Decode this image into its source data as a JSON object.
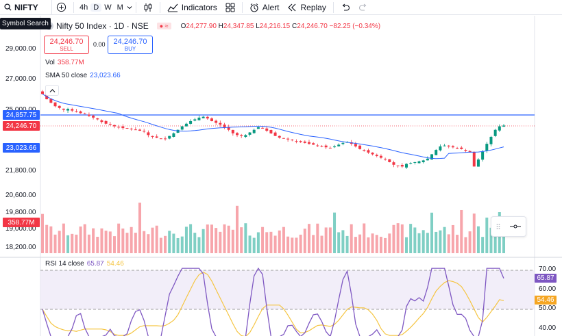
{
  "toolbar": {
    "symbol": "NIFTY",
    "intervals": [
      "4h",
      "D",
      "W",
      "M"
    ],
    "active_interval": "D",
    "indicators_label": "Indicators",
    "alert_label": "Alert",
    "replay_label": "Replay"
  },
  "tooltip": {
    "text": "Symbol Search"
  },
  "legend": {
    "title": "Nifty 50 Index · 1D · NSE",
    "o_label": "O",
    "o": "24,277.90",
    "h_label": "H",
    "h": "24,347.85",
    "l_label": "L",
    "l": "24,216.15",
    "c_label": "C",
    "c": "24,246.70",
    "change": "−82.25 (−0.34%)"
  },
  "trade": {
    "sell_price": "24,246.70",
    "sell_label": "SELL",
    "spread": "0.00",
    "buy_price": "24,246.70",
    "buy_label": "BUY"
  },
  "volume": {
    "label": "Vol",
    "value": "358.77M"
  },
  "sma": {
    "label": "SMA 50 close",
    "value": "23,023.66"
  },
  "rsi": {
    "label": "RSI 14 close",
    "value1": "65.87",
    "value2": "54.46"
  },
  "price_axis": {
    "ticks": [
      "29,000.00",
      "27,000.00",
      "25,000.00",
      "21,800.00",
      "20,600.00",
      "19,800.00",
      "19,000.00",
      "18,200.00"
    ],
    "badges": [
      {
        "text": "24,857.75",
        "color": "#2962ff"
      },
      {
        "text": "24,246.70",
        "color": "#f23645"
      },
      {
        "text": "358.77M",
        "color": "#f23645"
      },
      {
        "text": "23,023.66",
        "color": "#2962ff"
      }
    ]
  },
  "rsi_axis": {
    "ticks": [
      "70.00",
      "60.00",
      "50.00",
      "40.00"
    ],
    "badges": [
      {
        "text": "65.87",
        "color": "#7e57c2"
      },
      {
        "text": "54.46",
        "color": "#f5a623"
      }
    ]
  },
  "colors": {
    "up": "#089981",
    "down": "#f23645",
    "vol_up": "#7fcfc4",
    "vol_down": "#f7a5ab",
    "sma": "#2962ff",
    "rsi": "#7e57c2",
    "rsi_ma": "#f5c542"
  },
  "chart_data": {
    "type": "candlestick",
    "closes": [
      26050,
      25750,
      25550,
      25350,
      25250,
      25150,
      25200,
      25100,
      25050,
      24950,
      24900,
      24800,
      24700,
      24600,
      24450,
      24350,
      24300,
      24200,
      24150,
      24100,
      24100,
      24050,
      24000,
      23950,
      23900,
      23700,
      23600,
      23550,
      23500,
      23500,
      23650,
      23800,
      24000,
      24200,
      24350,
      24500,
      24600,
      24700,
      24750,
      24650,
      24500,
      24400,
      24300,
      24150,
      24000,
      23800,
      23700,
      23650,
      23700,
      23850,
      24000,
      24150,
      24100,
      23950,
      23800,
      23650,
      23550,
      23500,
      23450,
      23400,
      23350,
      23300,
      23250,
      23200,
      23150,
      23100,
      23050,
      23000,
      22950,
      23050,
      23150,
      23250,
      23300,
      23200,
      23050,
      22900,
      22800,
      22700,
      22600,
      22500,
      22400,
      22300,
      22150,
      22000,
      21950,
      21900,
      22050,
      22100,
      22150,
      22200,
      22250,
      22350,
      22600,
      22850,
      23050,
      23100,
      23050,
      23000,
      22950,
      22900,
      22800,
      22700,
      21900,
      22300,
      22750,
      23200,
      23600,
      24000,
      24200,
      24246.7
    ],
    "sma50": {
      "name": "SMA 50 close",
      "last": 23023.66
    },
    "rsi14": {
      "name": "RSI 14 close",
      "last": 65.87,
      "ma_last": 54.46,
      "levels": [
        70,
        50
      ]
    },
    "volume_last": "358.77M"
  }
}
